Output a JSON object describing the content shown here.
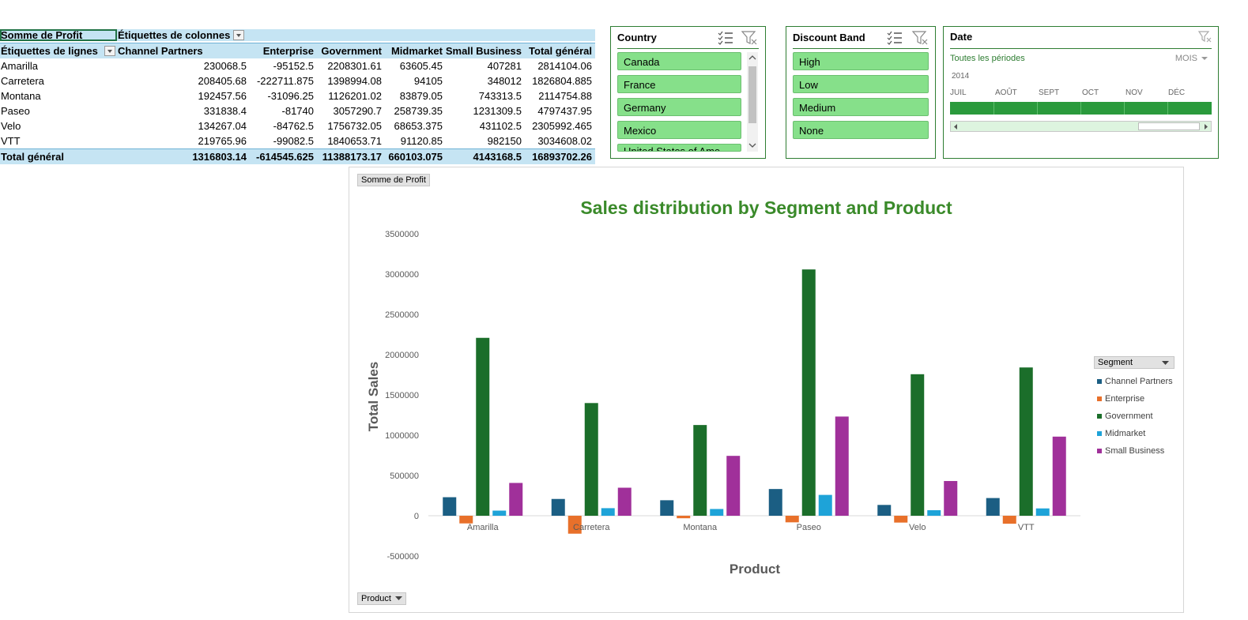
{
  "pivot": {
    "value_field": "Somme de Profit",
    "column_labels": "Étiquettes de colonnes",
    "row_labels": "Étiquettes de lignes",
    "columns": [
      "Channel Partners",
      "Enterprise",
      "Government",
      "Midmarket",
      "Small Business",
      "Total général"
    ],
    "rows": [
      {
        "label": "Amarilla",
        "values": [
          "230068.5",
          "-95152.5",
          "2208301.61",
          "63605.45",
          "407281",
          "2814104.06"
        ]
      },
      {
        "label": "Carretera",
        "values": [
          "208405.68",
          "-222711.875",
          "1398994.08",
          "94105",
          "348012",
          "1826804.885"
        ]
      },
      {
        "label": "Montana",
        "values": [
          "192457.56",
          "-31096.25",
          "1126201.02",
          "83879.05",
          "743313.5",
          "2114754.88"
        ]
      },
      {
        "label": "Paseo",
        "values": [
          "331838.4",
          "-81740",
          "3057290.7",
          "258739.35",
          "1231309.5",
          "4797437.95"
        ]
      },
      {
        "label": "Velo",
        "values": [
          "134267.04",
          "-84762.5",
          "1756732.05",
          "68653.375",
          "431102.5",
          "2305992.465"
        ]
      },
      {
        "label": "VTT",
        "values": [
          "219765.96",
          "-99082.5",
          "1840653.71",
          "91120.85",
          "982150",
          "3034608.02"
        ]
      }
    ],
    "total": {
      "label": "Total général",
      "values": [
        "1316803.14",
        "-614545.625",
        "11388173.17",
        "660103.075",
        "4143168.5",
        "16893702.26"
      ]
    }
  },
  "slicers": {
    "country": {
      "title": "Country",
      "items": [
        "Canada",
        "France",
        "Germany",
        "Mexico",
        "United States of Ame"
      ]
    },
    "discount": {
      "title": "Discount Band",
      "items": [
        "High",
        "Low",
        "Medium",
        "None"
      ]
    },
    "date": {
      "title": "Date",
      "period": "Toutes les périodes",
      "level": "MOIS",
      "year": "2014",
      "months": [
        "JUIL",
        "AOÛT",
        "SEPT",
        "OCT",
        "NOV",
        "DÉC"
      ]
    }
  },
  "chart_data": {
    "type": "bar",
    "title": "Sales distribution by Segment and Product",
    "xlabel": "Product",
    "ylabel": "Total Sales",
    "categories": [
      "Amarilla",
      "Carretera",
      "Montana",
      "Paseo",
      "Velo",
      "VTT"
    ],
    "ylim": [
      -500000,
      3500000
    ],
    "yticks": [
      "3500000",
      "3000000",
      "2500000",
      "2000000",
      "1500000",
      "1000000",
      "500000",
      "0",
      "-500000"
    ],
    "legend_title": "Segment",
    "legend_position": "right",
    "value_button": "Somme de Profit",
    "axis_button": "Product",
    "series": [
      {
        "name": "Channel Partners",
        "color": "#1b5e83",
        "values": [
          230068.5,
          208405.68,
          192457.56,
          331838.4,
          134267.04,
          219765.96
        ]
      },
      {
        "name": "Enterprise",
        "color": "#e8702a",
        "values": [
          -95152.5,
          -222711.875,
          -31096.25,
          -81740,
          -84762.5,
          -99082.5
        ]
      },
      {
        "name": "Government",
        "color": "#1b6e2a",
        "values": [
          2208301.61,
          1398994.08,
          1126201.02,
          3057290.7,
          1756732.05,
          1840653.71
        ]
      },
      {
        "name": "Midmarket",
        "color": "#1ea3d8",
        "values": [
          63605.45,
          94105,
          83879.05,
          258739.35,
          68653.375,
          91120.85
        ]
      },
      {
        "name": "Small Business",
        "color": "#a0309a",
        "values": [
          407281,
          348012,
          743313.5,
          1231309.5,
          431102.5,
          982150
        ]
      }
    ]
  }
}
